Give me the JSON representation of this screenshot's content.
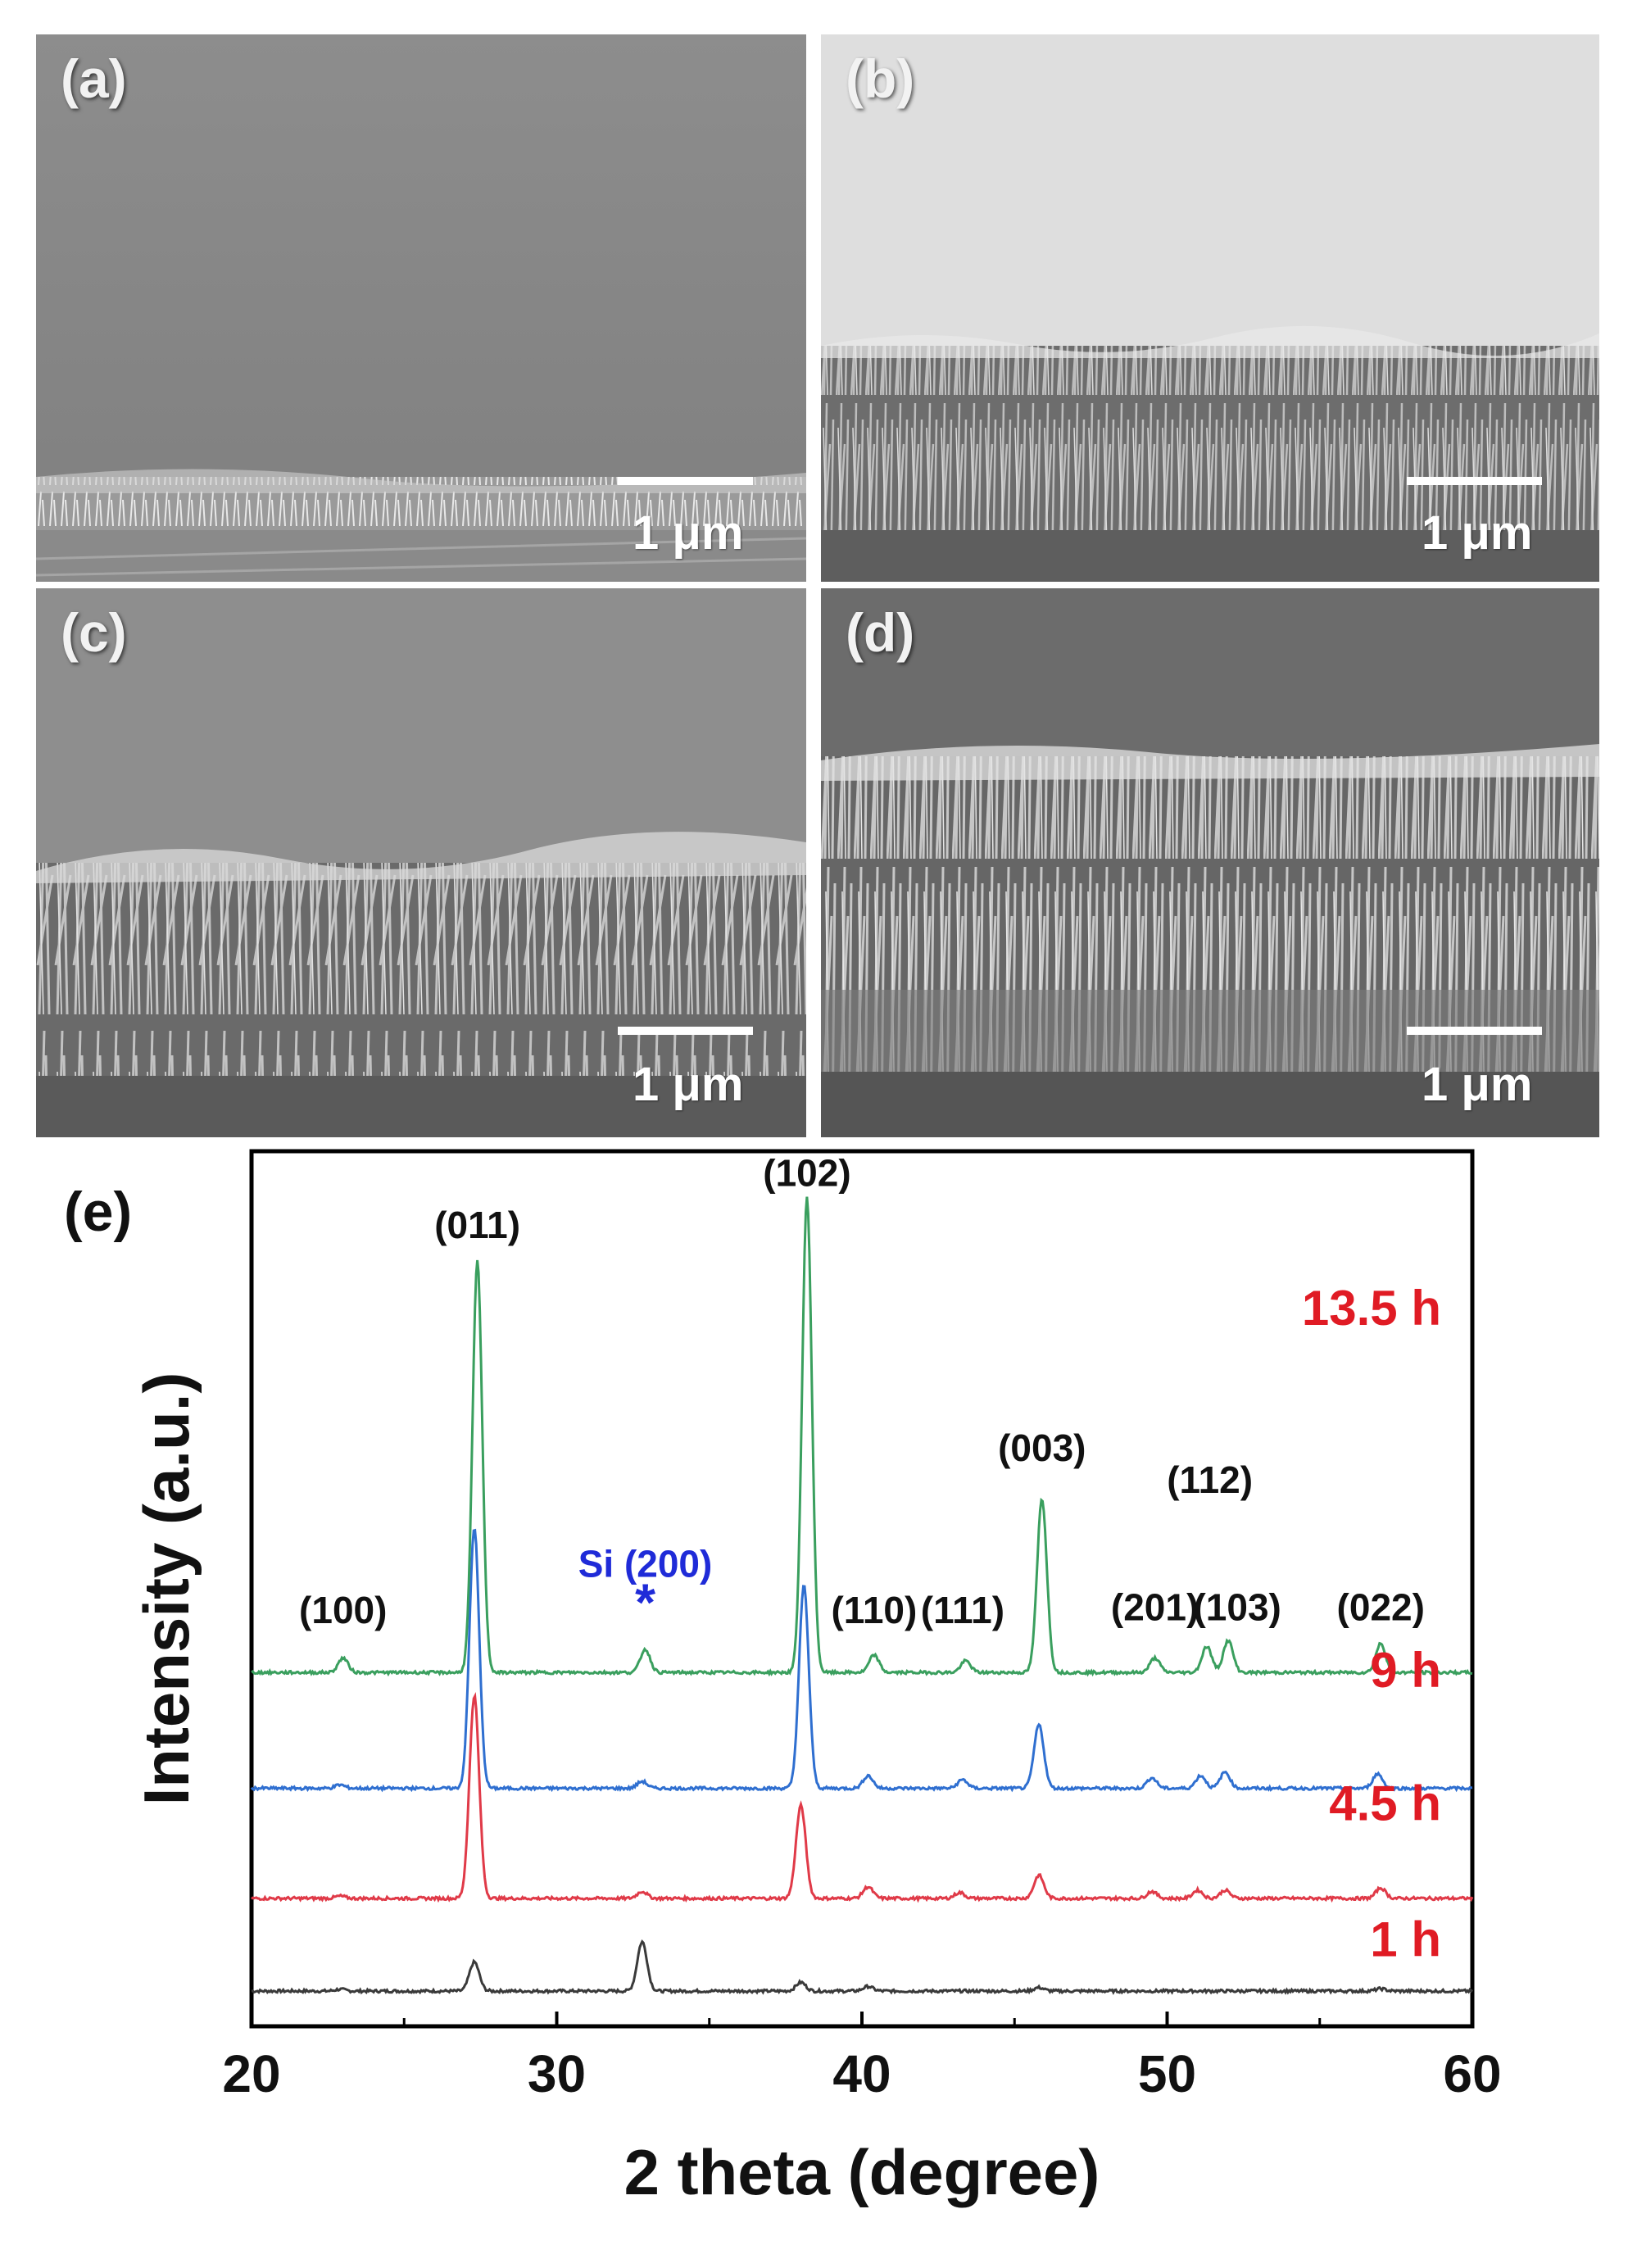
{
  "sem_panels": [
    {
      "label": "(a)",
      "scale_text": "1 μm"
    },
    {
      "label": "(b)",
      "scale_text": "1 μm"
    },
    {
      "label": "(c)",
      "scale_text": "1 μm"
    },
    {
      "label": "(d)",
      "scale_text": "1 μm"
    }
  ],
  "colors": {
    "s1h": "#3a3a3a",
    "s45h": "#e03a48",
    "s9h": "#2f6fd0",
    "s135h": "#3a9f5e",
    "time_label": "#e01b24",
    "si_label": "#1f2bd8"
  },
  "chart_data": {
    "type": "line",
    "panel_label": "(e)",
    "xlabel": "2 theta (degree)",
    "ylabel": "Intensity (a.u.)",
    "xlim": [
      20,
      60
    ],
    "ylim": [
      0,
      10
    ],
    "xticks": [
      20,
      30,
      40,
      50,
      60
    ],
    "series": [
      {
        "name": "1 h",
        "color_key": "s1h",
        "baseline": 0.0,
        "peaks": [
          [
            22.9,
            0.03
          ],
          [
            27.3,
            0.5
          ],
          [
            32.8,
            0.85
          ],
          [
            38.0,
            0.15
          ],
          [
            40.2,
            0.08
          ],
          [
            45.8,
            0.06
          ],
          [
            57.0,
            0.04
          ]
        ]
      },
      {
        "name": "4.5 h",
        "color_key": "s45h",
        "baseline": 1.6,
        "peaks": [
          [
            22.9,
            0.04
          ],
          [
            27.3,
            3.5
          ],
          [
            32.8,
            0.12
          ],
          [
            38.0,
            1.6
          ],
          [
            40.2,
            0.2
          ],
          [
            43.2,
            0.1
          ],
          [
            45.8,
            0.4
          ],
          [
            49.5,
            0.12
          ],
          [
            51.0,
            0.14
          ],
          [
            51.9,
            0.14
          ],
          [
            57.0,
            0.18
          ]
        ]
      },
      {
        "name": "9 h",
        "color_key": "s9h",
        "baseline": 3.5,
        "peaks": [
          [
            22.9,
            0.06
          ],
          [
            27.3,
            4.5
          ],
          [
            32.8,
            0.12
          ],
          [
            38.1,
            3.5
          ],
          [
            40.2,
            0.22
          ],
          [
            43.3,
            0.15
          ],
          [
            45.8,
            1.1
          ],
          [
            49.5,
            0.18
          ],
          [
            51.1,
            0.22
          ],
          [
            51.9,
            0.28
          ],
          [
            56.9,
            0.25
          ]
        ]
      },
      {
        "name": "13.5 h",
        "color_key": "s135h",
        "baseline": 5.5,
        "peaks": [
          [
            23.0,
            0.25
          ],
          [
            27.4,
            7.1
          ],
          [
            32.9,
            0.4
          ],
          [
            38.2,
            8.2
          ],
          [
            40.4,
            0.3
          ],
          [
            43.4,
            0.2
          ],
          [
            45.9,
            3.0
          ],
          [
            49.6,
            0.25
          ],
          [
            51.3,
            0.45
          ],
          [
            52.0,
            0.55
          ],
          [
            57.0,
            0.5
          ]
        ]
      }
    ],
    "peak_labels": [
      {
        "text": "(100)",
        "x": 23.0,
        "y": 6.35
      },
      {
        "text": "(011)",
        "x": 27.4,
        "y": 13.0
      },
      {
        "text": "(102)",
        "x": 38.2,
        "y": 13.9
      },
      {
        "text": "(110)",
        "x": 40.4,
        "y": 6.35
      },
      {
        "text": "(111)",
        "x": 43.3,
        "y": 6.35
      },
      {
        "text": "(003)",
        "x": 45.9,
        "y": 9.15
      },
      {
        "text": "(201)",
        "x": 49.6,
        "y": 6.4
      },
      {
        "text": "(112)",
        "x": 51.4,
        "y": 8.6
      },
      {
        "text": "(103)",
        "x": 52.3,
        "y": 6.4
      },
      {
        "text": "(022)",
        "x": 57.0,
        "y": 6.4
      }
    ],
    "si_label": {
      "text": "Si (200)",
      "marker": "*",
      "x": 32.9,
      "y": 7.15
    },
    "time_labels": [
      {
        "text": "13.5 h",
        "y": 11.5
      },
      {
        "text": "9 h",
        "y": 5.25
      },
      {
        "text": "4.5 h",
        "y": 2.95
      },
      {
        "text": "1 h",
        "y": 0.6
      }
    ]
  }
}
